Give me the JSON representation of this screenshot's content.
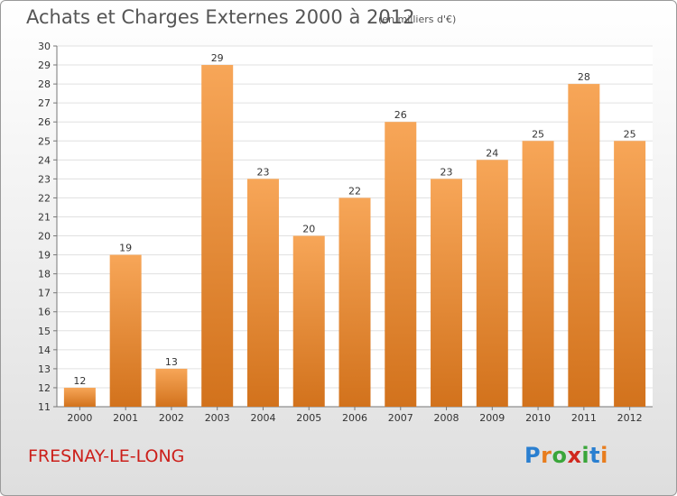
{
  "header": {
    "title": "Achats et Charges Externes 2000 à 2012",
    "unit": "(en milliers d'€)"
  },
  "footer": {
    "commune": "FRESNAY-LE-LONG",
    "logo_letters": [
      "P",
      "r",
      "o",
      "x",
      "i",
      "t",
      "i"
    ]
  },
  "colors": {
    "bar_top": "#f7a658",
    "bar_bottom": "#d2721c",
    "commune": "#cc1f1a"
  },
  "chart_data": {
    "type": "bar",
    "title": "Achats et Charges Externes 2000 à 2012",
    "subtitle": "(en milliers d'€)",
    "categories": [
      "2000",
      "2001",
      "2002",
      "2003",
      "2004",
      "2005",
      "2006",
      "2007",
      "2008",
      "2009",
      "2010",
      "2011",
      "2012"
    ],
    "values": [
      12,
      19,
      13,
      29,
      23,
      20,
      22,
      26,
      23,
      24,
      25,
      28,
      25
    ],
    "ylim": [
      11,
      30
    ],
    "yticks": [
      11,
      12,
      13,
      14,
      15,
      16,
      17,
      18,
      19,
      20,
      21,
      22,
      23,
      24,
      25,
      26,
      27,
      28,
      29,
      30
    ],
    "grid": true
  }
}
